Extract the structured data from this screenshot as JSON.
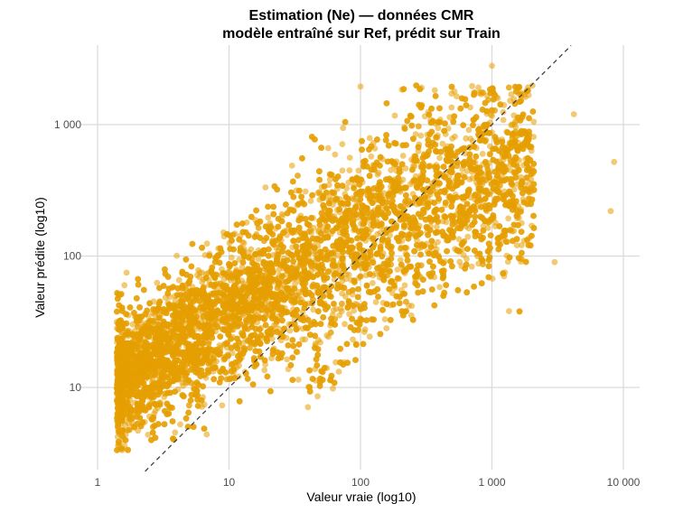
{
  "chart_data": {
    "type": "scatter",
    "title": "Estimation (Ne) — données CMR",
    "subtitle": "modèle entraîné sur Ref, prédit sur Train",
    "xlabel": "Valeur vraie (log10)",
    "ylabel": "Valeur prédite (log10)",
    "x_scale": "log10",
    "y_scale": "log10",
    "xlim": [
      1,
      10000
    ],
    "ylim": [
      2.3,
      4000
    ],
    "x_ticks": [
      {
        "value": 1,
        "label": "1"
      },
      {
        "value": 10,
        "label": "10"
      },
      {
        "value": 100,
        "label": "100"
      },
      {
        "value": 1000,
        "label": "1 000"
      },
      {
        "value": 10000,
        "label": "10 000"
      }
    ],
    "y_ticks": [
      {
        "value": 10,
        "label": "10"
      },
      {
        "value": 100,
        "label": "100"
      },
      {
        "value": 1000,
        "label": "1 000"
      }
    ],
    "grid": true,
    "legend": "none",
    "point_color": "#E69F00",
    "reference_line": {
      "type": "identity",
      "style": "dashed",
      "color": "#404040"
    },
    "outlier_points": [
      {
        "x": 1000,
        "y": 2800
      },
      {
        "x": 100,
        "y": 1950
      },
      {
        "x": 4200,
        "y": 1200
      },
      {
        "x": 8500,
        "y": 520
      },
      {
        "x": 8000,
        "y": 220
      },
      {
        "x": 3000,
        "y": 90
      },
      {
        "x": 1.6,
        "y": 60
      },
      {
        "x": 1.5,
        "y": 3.4
      },
      {
        "x": 400,
        "y": 58
      }
    ],
    "point_cloud": {
      "approx_count": 9000,
      "x_range": [
        1.4,
        9000
      ],
      "y_range": [
        3.3,
        2000
      ],
      "relationship": "predicted increases with true value; underprediction above ~300"
    }
  }
}
